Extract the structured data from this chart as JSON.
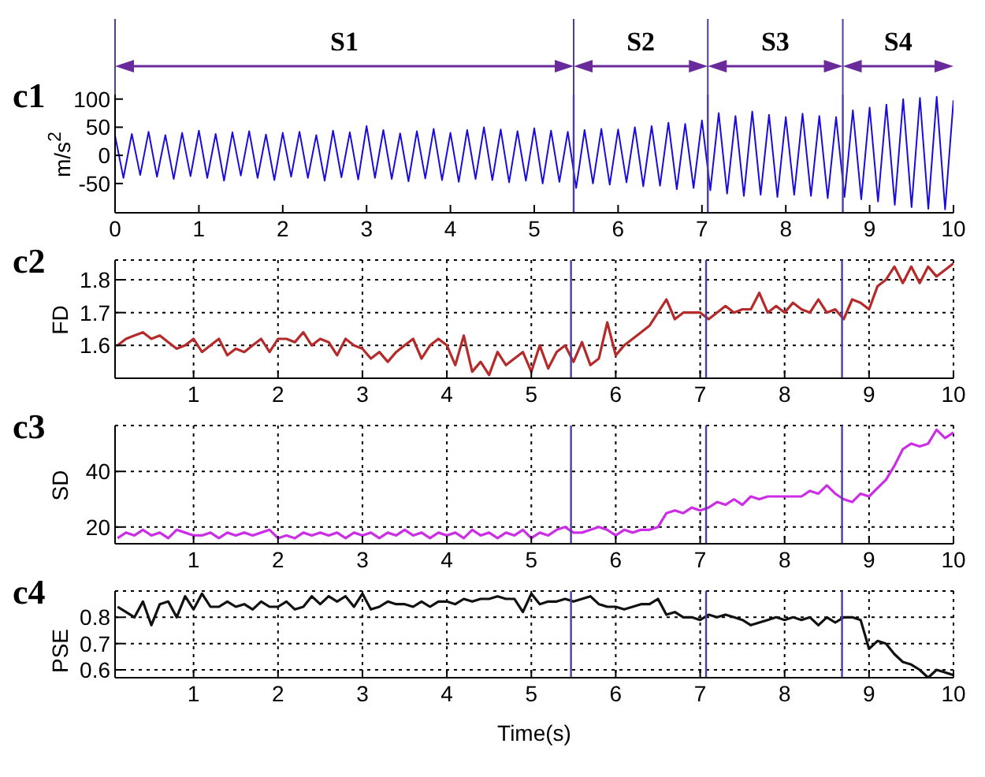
{
  "chart_data": [
    {
      "type": "line",
      "title": "c1",
      "ylabel": "m/s$^{2}$",
      "color": "#1a0ddb",
      "xlim": [
        0,
        10
      ],
      "xticks": [
        0,
        1,
        2,
        3,
        4,
        5,
        6,
        7,
        8,
        9,
        10
      ],
      "ylim": [
        -102,
        108
      ],
      "yticks": [
        -50,
        0,
        50,
        100
      ],
      "grid": false,
      "x": [
        0,
        0.1,
        0.2,
        0.3,
        0.4,
        0.5,
        0.6,
        0.7,
        0.8,
        0.9,
        1,
        1.1,
        1.2,
        1.3,
        1.4,
        1.5,
        1.6,
        1.7,
        1.8,
        1.9,
        2,
        2.1,
        2.2,
        2.3,
        2.4,
        2.5,
        2.6,
        2.7,
        2.8,
        2.9,
        3,
        3.1,
        3.2,
        3.3,
        3.4,
        3.5,
        3.6,
        3.7,
        3.8,
        3.9,
        4,
        4.1,
        4.2,
        4.3,
        4.4,
        4.5,
        4.6,
        4.7,
        4.8,
        4.9,
        5,
        5.1,
        5.2,
        5.3,
        5.4,
        5.5,
        5.6,
        5.7,
        5.8,
        5.9,
        6,
        6.1,
        6.2,
        6.3,
        6.4,
        6.5,
        6.6,
        6.7,
        6.8,
        6.9,
        7,
        7.1,
        7.2,
        7.3,
        7.4,
        7.5,
        7.6,
        7.7,
        7.8,
        7.9,
        8,
        8.1,
        8.2,
        8.3,
        8.4,
        8.5,
        8.6,
        8.7,
        8.8,
        8.9,
        9,
        9.1,
        9.2,
        9.3,
        9.4,
        9.5,
        9.6,
        9.7,
        9.8,
        9.9,
        10
      ],
      "values": [
        35,
        -40,
        38,
        -35,
        42,
        -38,
        36,
        -42,
        40,
        -37,
        44,
        -40,
        38,
        -45,
        41,
        -36,
        43,
        -40,
        37,
        -44,
        40,
        -38,
        42,
        -40,
        36,
        -45,
        44,
        -39,
        41,
        -43,
        52,
        -40,
        45,
        -42,
        39,
        -46,
        43,
        -41,
        47,
        -44,
        40,
        -47,
        45,
        -42,
        50,
        -44,
        46,
        -48,
        43,
        -45,
        48,
        -50,
        44,
        -47,
        42,
        -58,
        45,
        -50,
        47,
        -52,
        46,
        -48,
        50,
        -55,
        52,
        -54,
        58,
        -60,
        56,
        -58,
        62,
        -62,
        75,
        -68,
        70,
        -72,
        78,
        -70,
        72,
        -74,
        68,
        -70,
        74,
        -72,
        70,
        -76,
        68,
        -74,
        80,
        -78,
        85,
        -82,
        90,
        -88,
        100,
        -92,
        102,
        -95,
        104,
        -96,
        98
      ],
      "ref_lines": [
        {
          "axis": "x",
          "value": 5.47,
          "color": "#4b3fa6"
        },
        {
          "axis": "x",
          "value": 7.07,
          "color": "#4b3fa6"
        },
        {
          "axis": "x",
          "value": 8.68,
          "color": "#4b3fa6"
        }
      ],
      "annotations": [
        "S1",
        "S2",
        "S3",
        "S4"
      ]
    },
    {
      "type": "line",
      "title": "c2",
      "ylabel": "FD",
      "color": "#b52a2a",
      "xlim": [
        0.07,
        10
      ],
      "xticks": [
        1,
        2,
        3,
        4,
        5,
        6,
        7,
        8,
        9,
        10
      ],
      "ylim": [
        1.5,
        1.86
      ],
      "yticks": [
        1.6,
        1.7,
        1.8
      ],
      "grid": true,
      "x": [
        0.1,
        0.2,
        0.3,
        0.4,
        0.5,
        0.6,
        0.7,
        0.8,
        0.9,
        1,
        1.1,
        1.2,
        1.3,
        1.4,
        1.5,
        1.6,
        1.7,
        1.8,
        1.9,
        2,
        2.1,
        2.2,
        2.3,
        2.4,
        2.5,
        2.6,
        2.7,
        2.8,
        2.9,
        3,
        3.1,
        3.2,
        3.3,
        3.4,
        3.5,
        3.6,
        3.7,
        3.8,
        3.9,
        4,
        4.1,
        4.2,
        4.3,
        4.4,
        4.5,
        4.6,
        4.7,
        4.8,
        4.9,
        5,
        5.1,
        5.2,
        5.3,
        5.4,
        5.5,
        5.6,
        5.7,
        5.8,
        5.9,
        6,
        6.1,
        6.2,
        6.3,
        6.4,
        6.5,
        6.6,
        6.7,
        6.8,
        6.9,
        7,
        7.1,
        7.2,
        7.3,
        7.4,
        7.5,
        7.6,
        7.7,
        7.8,
        7.9,
        8,
        8.1,
        8.2,
        8.3,
        8.4,
        8.5,
        8.6,
        8.7,
        8.8,
        8.9,
        9,
        9.1,
        9.2,
        9.3,
        9.4,
        9.5,
        9.6,
        9.7,
        9.8,
        9.9,
        10
      ],
      "values": [
        1.6,
        1.62,
        1.63,
        1.64,
        1.62,
        1.63,
        1.61,
        1.59,
        1.6,
        1.62,
        1.58,
        1.6,
        1.62,
        1.57,
        1.59,
        1.58,
        1.6,
        1.62,
        1.58,
        1.62,
        1.62,
        1.61,
        1.64,
        1.6,
        1.62,
        1.61,
        1.57,
        1.62,
        1.6,
        1.59,
        1.56,
        1.58,
        1.55,
        1.58,
        1.6,
        1.62,
        1.56,
        1.6,
        1.62,
        1.6,
        1.54,
        1.63,
        1.52,
        1.55,
        1.51,
        1.58,
        1.54,
        1.56,
        1.58,
        1.52,
        1.6,
        1.53,
        1.58,
        1.6,
        1.55,
        1.61,
        1.54,
        1.56,
        1.67,
        1.57,
        1.6,
        1.62,
        1.64,
        1.66,
        1.7,
        1.74,
        1.68,
        1.7,
        1.7,
        1.7,
        1.68,
        1.7,
        1.72,
        1.7,
        1.71,
        1.71,
        1.76,
        1.7,
        1.72,
        1.7,
        1.73,
        1.71,
        1.7,
        1.74,
        1.7,
        1.71,
        1.68,
        1.74,
        1.73,
        1.71,
        1.78,
        1.8,
        1.84,
        1.79,
        1.84,
        1.79,
        1.84,
        1.81,
        1.83,
        1.85
      ],
      "ref_lines": [
        {
          "axis": "x",
          "value": 5.47,
          "color": "#4b3fa6"
        },
        {
          "axis": "x",
          "value": 7.07,
          "color": "#4b3fa6"
        },
        {
          "axis": "x",
          "value": 8.68,
          "color": "#4b3fa6"
        }
      ]
    },
    {
      "type": "line",
      "title": "c3",
      "ylabel": "SD",
      "color": "#cc2ee6",
      "xlim": [
        0.07,
        10
      ],
      "xticks": [
        1,
        2,
        3,
        4,
        5,
        6,
        7,
        8,
        9,
        10
      ],
      "ylim": [
        14,
        56.5
      ],
      "yticks": [
        20,
        40
      ],
      "grid": true,
      "x": [
        0.1,
        0.2,
        0.3,
        0.4,
        0.5,
        0.6,
        0.7,
        0.8,
        0.9,
        1,
        1.1,
        1.2,
        1.3,
        1.4,
        1.5,
        1.6,
        1.7,
        1.8,
        1.9,
        2,
        2.1,
        2.2,
        2.3,
        2.4,
        2.5,
        2.6,
        2.7,
        2.8,
        2.9,
        3,
        3.1,
        3.2,
        3.3,
        3.4,
        3.5,
        3.6,
        3.7,
        3.8,
        3.9,
        4,
        4.1,
        4.2,
        4.3,
        4.4,
        4.5,
        4.6,
        4.7,
        4.8,
        4.9,
        5,
        5.1,
        5.2,
        5.3,
        5.4,
        5.5,
        5.6,
        5.7,
        5.8,
        5.9,
        6,
        6.1,
        6.2,
        6.3,
        6.4,
        6.5,
        6.6,
        6.7,
        6.8,
        6.9,
        7,
        7.1,
        7.2,
        7.3,
        7.4,
        7.5,
        7.6,
        7.7,
        7.8,
        7.9,
        8,
        8.1,
        8.2,
        8.3,
        8.4,
        8.5,
        8.6,
        8.7,
        8.8,
        8.9,
        9,
        9.1,
        9.2,
        9.3,
        9.4,
        9.5,
        9.6,
        9.7,
        9.8,
        9.9,
        10
      ],
      "values": [
        16,
        18,
        17,
        19,
        17,
        18,
        16,
        19,
        18,
        17,
        17,
        18,
        16,
        18,
        17,
        18,
        17,
        18,
        19,
        16,
        17,
        16,
        18,
        17,
        18,
        17,
        18,
        16,
        18,
        17,
        18,
        16,
        18,
        17,
        19,
        17,
        18,
        16,
        18,
        17,
        18,
        16,
        19,
        17,
        18,
        16,
        18,
        17,
        19,
        16,
        18,
        17,
        19,
        20,
        18,
        18,
        19,
        20,
        19,
        17,
        19,
        18,
        19,
        19,
        20,
        25,
        26,
        25,
        27,
        26,
        27,
        29,
        28,
        30,
        28,
        31,
        30,
        31,
        31,
        31,
        31,
        31,
        33,
        32,
        35,
        32,
        30,
        29,
        32,
        31,
        34,
        37,
        42,
        48,
        50,
        49,
        50,
        55,
        52,
        54
      ],
      "ref_lines": [
        {
          "axis": "x",
          "value": 5.47,
          "color": "#4b3fa6"
        },
        {
          "axis": "x",
          "value": 7.07,
          "color": "#4b3fa6"
        },
        {
          "axis": "x",
          "value": 8.68,
          "color": "#4b3fa6"
        }
      ]
    },
    {
      "type": "line",
      "title": "c4",
      "ylabel": "PSE",
      "xlabel": "Time(s)",
      "color": "#111111",
      "xlim": [
        0.07,
        10
      ],
      "xticks": [
        1,
        2,
        3,
        4,
        5,
        6,
        7,
        8,
        9,
        10
      ],
      "ylim": [
        0.57,
        0.9
      ],
      "yticks": [
        0.6,
        0.7,
        0.8
      ],
      "grid": true,
      "x": [
        0.1,
        0.2,
        0.3,
        0.4,
        0.5,
        0.6,
        0.7,
        0.8,
        0.9,
        1,
        1.1,
        1.2,
        1.3,
        1.4,
        1.5,
        1.6,
        1.7,
        1.8,
        1.9,
        2,
        2.1,
        2.2,
        2.3,
        2.4,
        2.5,
        2.6,
        2.7,
        2.8,
        2.9,
        3,
        3.1,
        3.2,
        3.3,
        3.4,
        3.5,
        3.6,
        3.7,
        3.8,
        3.9,
        4,
        4.1,
        4.2,
        4.3,
        4.4,
        4.5,
        4.6,
        4.7,
        4.8,
        4.9,
        5,
        5.1,
        5.2,
        5.3,
        5.4,
        5.5,
        5.6,
        5.7,
        5.8,
        5.9,
        6,
        6.1,
        6.2,
        6.3,
        6.4,
        6.5,
        6.6,
        6.7,
        6.8,
        6.9,
        7,
        7.1,
        7.2,
        7.3,
        7.4,
        7.5,
        7.6,
        7.7,
        7.8,
        7.9,
        8,
        8.1,
        8.2,
        8.3,
        8.4,
        8.5,
        8.6,
        8.7,
        8.8,
        8.9,
        9,
        9.1,
        9.2,
        9.3,
        9.4,
        9.5,
        9.6,
        9.7,
        9.8,
        9.9,
        10
      ],
      "values": [
        0.84,
        0.82,
        0.8,
        0.86,
        0.77,
        0.85,
        0.86,
        0.8,
        0.88,
        0.83,
        0.89,
        0.84,
        0.84,
        0.86,
        0.84,
        0.85,
        0.83,
        0.86,
        0.84,
        0.84,
        0.86,
        0.83,
        0.84,
        0.88,
        0.85,
        0.88,
        0.86,
        0.88,
        0.84,
        0.89,
        0.83,
        0.84,
        0.86,
        0.85,
        0.85,
        0.84,
        0.86,
        0.84,
        0.86,
        0.86,
        0.85,
        0.87,
        0.86,
        0.87,
        0.87,
        0.88,
        0.87,
        0.87,
        0.82,
        0.89,
        0.85,
        0.86,
        0.86,
        0.87,
        0.86,
        0.87,
        0.88,
        0.85,
        0.84,
        0.84,
        0.83,
        0.84,
        0.85,
        0.85,
        0.87,
        0.81,
        0.82,
        0.8,
        0.8,
        0.79,
        0.81,
        0.8,
        0.81,
        0.8,
        0.79,
        0.77,
        0.78,
        0.79,
        0.8,
        0.79,
        0.8,
        0.79,
        0.8,
        0.77,
        0.8,
        0.78,
        0.8,
        0.8,
        0.79,
        0.68,
        0.71,
        0.7,
        0.66,
        0.63,
        0.62,
        0.6,
        0.57,
        0.6,
        0.59,
        0.58
      ],
      "ref_lines": [
        {
          "axis": "x",
          "value": 5.47,
          "color": "#4b3fa6"
        },
        {
          "axis": "x",
          "value": 7.07,
          "color": "#4b3fa6"
        },
        {
          "axis": "x",
          "value": 8.68,
          "color": "#4b3fa6"
        }
      ]
    }
  ]
}
